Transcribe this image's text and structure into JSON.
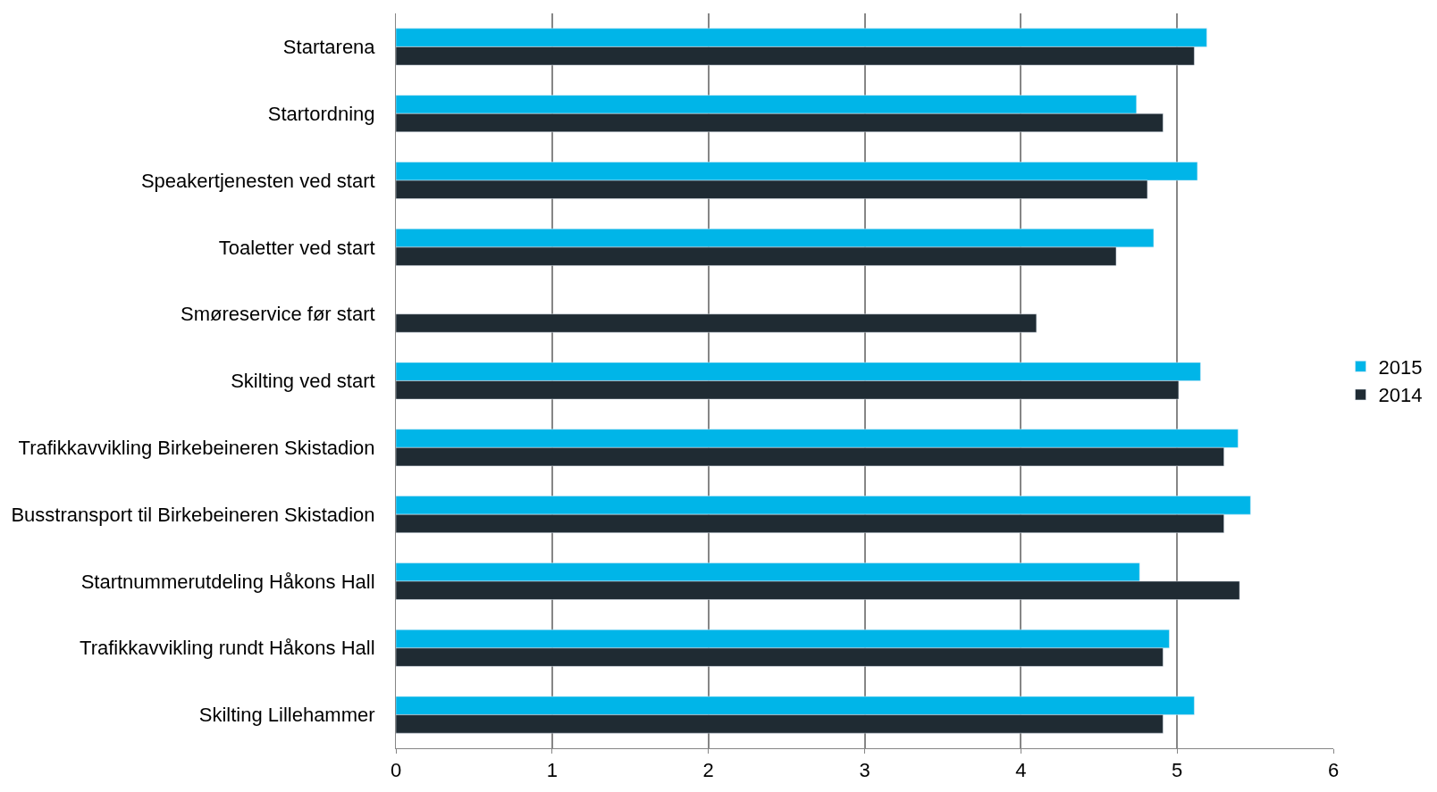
{
  "chart_data": {
    "type": "bar",
    "orientation": "horizontal",
    "categories": [
      "Startarena",
      "Startordning",
      "Speakertjenesten ved start",
      "Toaletter ved start",
      "Smøreservice før start",
      "Skilting ved start",
      "Trafikkavvikling Birkebeineren Skistadion",
      "Busstransport til Birkebeineren Skistadion",
      "Startnummerutdeling Håkons Hall",
      "Trafikkavvikling rundt Håkons Hall",
      "Skilting Lillehammer"
    ],
    "series": [
      {
        "name": "2015",
        "color": "#00b5e8",
        "values": [
          5.19,
          4.74,
          5.13,
          4.85,
          null,
          5.15,
          5.39,
          5.47,
          4.76,
          4.95,
          5.11
        ]
      },
      {
        "name": "2014",
        "color": "#1f2b33",
        "values": [
          5.11,
          4.91,
          4.81,
          4.61,
          4.1,
          5.01,
          5.3,
          5.3,
          5.4,
          4.91,
          4.91
        ]
      }
    ],
    "xlim": [
      0,
      6
    ],
    "xticks": [
      0,
      1,
      2,
      3,
      4,
      5,
      6
    ],
    "grid": "x",
    "legend": "right"
  }
}
